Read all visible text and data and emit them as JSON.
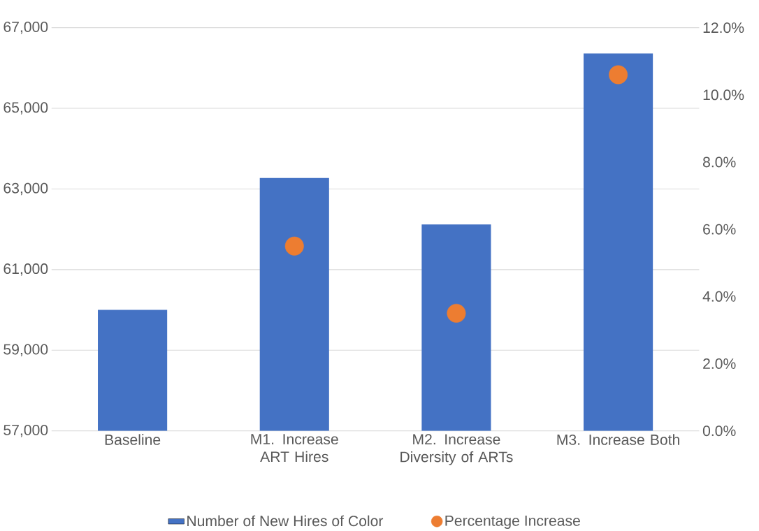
{
  "chart_data": {
    "type": "bar",
    "categories": [
      "Baseline",
      "M1. Increase ART Hires",
      "M2. Increase Diversity of ARTs",
      "M3. Increase Both"
    ],
    "series": [
      {
        "name": "Number of New Hires of Color",
        "color": "#4472c4",
        "values": [
          60000,
          63270,
          62120,
          66360
        ]
      },
      {
        "name": "Percentage Increase",
        "color": "#ed7d31",
        "type": "scatter",
        "axis": "y2",
        "marker": "circle",
        "values": [
          null,
          5.5,
          3.5,
          10.6
        ]
      }
    ],
    "ylim": [
      57000,
      67000
    ],
    "yticks": [
      {
        "value": 57000,
        "label": "57,000"
      },
      {
        "value": 59000,
        "label": "59,000"
      },
      {
        "value": 61000,
        "label": "61,000"
      },
      {
        "value": 63000,
        "label": "63,000"
      },
      {
        "value": 65000,
        "label": "65,000"
      },
      {
        "value": 67000,
        "label": "67,000"
      }
    ],
    "y2lim": [
      0,
      12
    ],
    "y2ticks": [
      {
        "value": 0,
        "label": "0.0%"
      },
      {
        "value": 2,
        "label": "2.0%"
      },
      {
        "value": 4,
        "label": "4.0%"
      },
      {
        "value": 6,
        "label": "6.0%"
      },
      {
        "value": 8,
        "label": "8.0%"
      },
      {
        "value": 10,
        "label": "10.0%"
      },
      {
        "value": 12,
        "label": "12.0%"
      }
    ],
    "grid": "y",
    "legend": "bottom"
  }
}
